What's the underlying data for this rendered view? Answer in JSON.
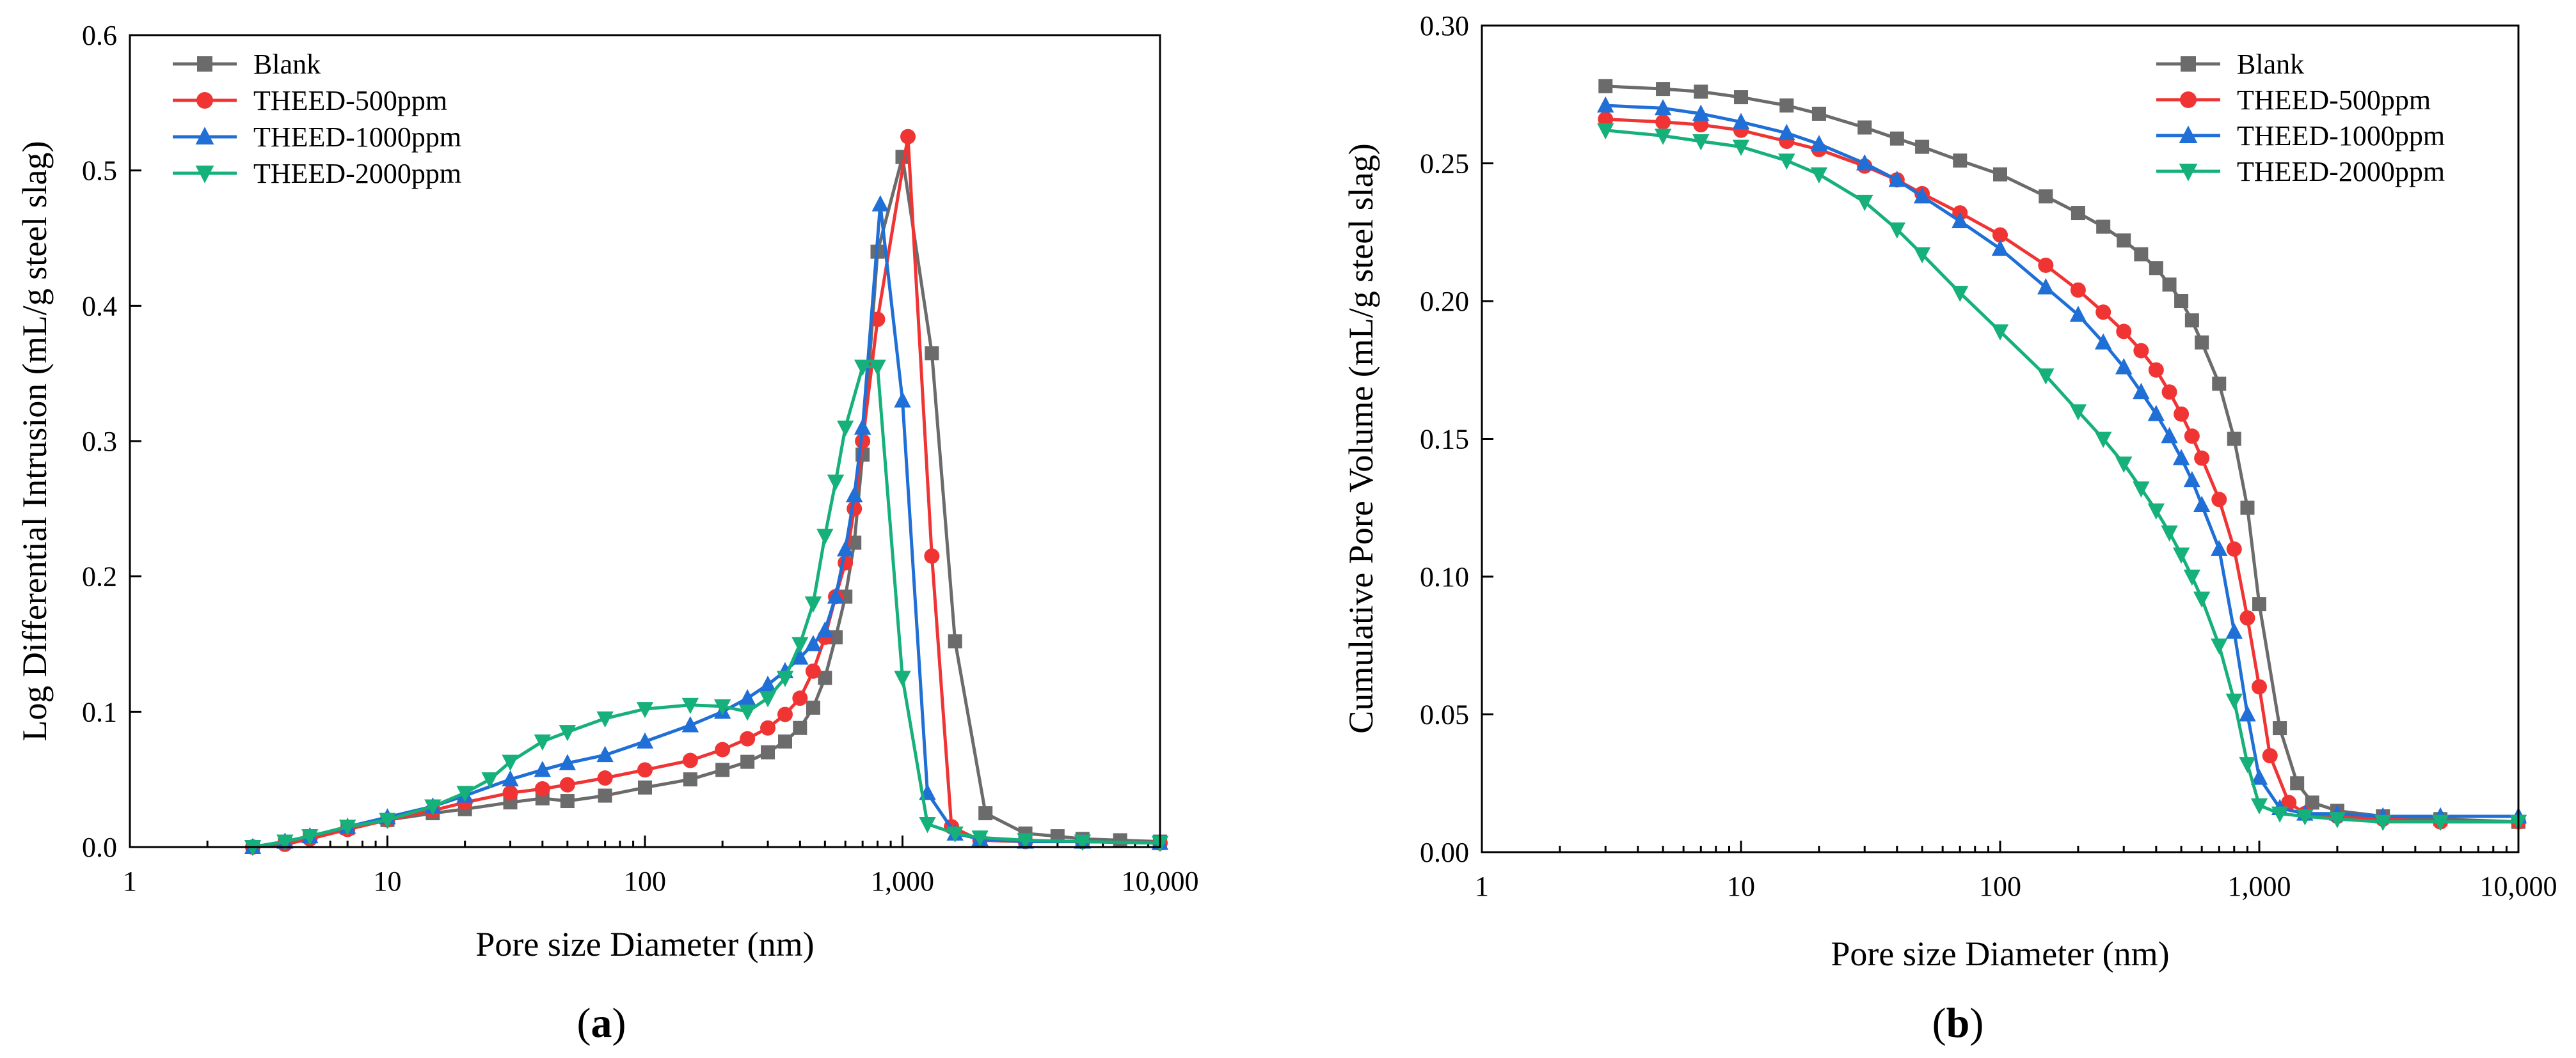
{
  "figure": {
    "panels": [
      {
        "label": "a",
        "xlabel": "Pore size Diameter (nm)",
        "ylabel": "Log Differential Intrusion (mL/g steel slag)"
      },
      {
        "label": "b",
        "xlabel": "Pore size Diameter (nm)",
        "ylabel": "Cumulative Pore Volume (mL/g steel slag)"
      }
    ]
  },
  "legend_entries": [
    "Blank",
    "THEED-500ppm",
    "THEED-1000ppm",
    "THEED-2000ppm"
  ],
  "series_style": [
    {
      "name": "Blank",
      "color": "#6b6b6b",
      "marker": "square"
    },
    {
      "name": "THEED-500ppm",
      "color": "#f03434",
      "marker": "circle"
    },
    {
      "name": "THEED-1000ppm",
      "color": "#1f6fd6",
      "marker": "triangle-up"
    },
    {
      "name": "THEED-2000ppm",
      "color": "#16b07a",
      "marker": "triangle-down"
    }
  ],
  "chart_data": [
    {
      "type": "line",
      "panel": "a",
      "title": "",
      "xlabel": "Pore size Diameter (nm)",
      "ylabel": "Log Differential Intrusion (mL/g steel slag)",
      "xscale": "log",
      "xlim": [
        1,
        10000
      ],
      "ylim": [
        0,
        0.6
      ],
      "xticks": [
        1,
        10,
        100,
        1000,
        10000
      ],
      "xtick_labels": [
        "1",
        "10",
        "100",
        "1,000",
        "10,000"
      ],
      "yticks": [
        0,
        0.1,
        0.2,
        0.3,
        0.4,
        0.5,
        0.6
      ],
      "ytick_labels": [
        "0.0",
        "0.1",
        "0.2",
        "0.3",
        "0.4",
        "0.5",
        "0.6"
      ],
      "legend_location": "top-left",
      "grid": false,
      "series": [
        {
          "name": "Blank",
          "x": [
            3,
            4,
            5,
            7,
            10,
            15,
            20,
            30,
            40,
            50,
            70,
            100,
            150,
            200,
            250,
            300,
            350,
            400,
            450,
            500,
            550,
            600,
            650,
            700,
            800,
            1000,
            1300,
            1600,
            2100,
            3000,
            4000,
            5000,
            7000,
            10000
          ],
          "y": [
            0.0,
            0.004,
            0.008,
            0.014,
            0.02,
            0.025,
            0.028,
            0.033,
            0.036,
            0.034,
            0.038,
            0.044,
            0.05,
            0.057,
            0.063,
            0.07,
            0.078,
            0.088,
            0.103,
            0.125,
            0.155,
            0.185,
            0.225,
            0.29,
            0.44,
            0.51,
            0.365,
            0.152,
            0.025,
            0.01,
            0.008,
            0.006,
            0.005,
            0.004
          ]
        },
        {
          "name": "THEED-500ppm",
          "x": [
            3,
            4,
            5,
            7,
            10,
            15,
            20,
            30,
            40,
            50,
            70,
            100,
            150,
            200,
            250,
            300,
            350,
            400,
            450,
            500,
            550,
            600,
            650,
            700,
            800,
            1050,
            1300,
            1550,
            2000,
            3000,
            5000,
            10000
          ],
          "y": [
            0.0,
            0.002,
            0.006,
            0.013,
            0.02,
            0.027,
            0.033,
            0.04,
            0.043,
            0.046,
            0.051,
            0.057,
            0.064,
            0.072,
            0.08,
            0.088,
            0.098,
            0.11,
            0.13,
            0.155,
            0.185,
            0.21,
            0.25,
            0.3,
            0.39,
            0.525,
            0.215,
            0.015,
            0.005,
            0.004,
            0.004,
            0.003
          ]
        },
        {
          "name": "THEED-1000ppm",
          "x": [
            3,
            4,
            5,
            7,
            10,
            15,
            20,
            30,
            40,
            50,
            70,
            100,
            150,
            200,
            250,
            300,
            350,
            400,
            450,
            500,
            550,
            600,
            650,
            700,
            820,
            1000,
            1250,
            1600,
            2000,
            3000,
            5000,
            10000
          ],
          "y": [
            0.0,
            0.004,
            0.008,
            0.015,
            0.022,
            0.03,
            0.038,
            0.05,
            0.057,
            0.062,
            0.068,
            0.078,
            0.09,
            0.1,
            0.11,
            0.12,
            0.13,
            0.14,
            0.15,
            0.16,
            0.185,
            0.22,
            0.26,
            0.31,
            0.475,
            0.33,
            0.04,
            0.01,
            0.006,
            0.004,
            0.004,
            0.003
          ]
        },
        {
          "name": "THEED-2000ppm",
          "x": [
            3,
            4,
            5,
            7,
            10,
            15,
            20,
            25,
            30,
            40,
            50,
            70,
            100,
            150,
            200,
            250,
            300,
            350,
            400,
            450,
            500,
            550,
            600,
            700,
            800,
            1000,
            1250,
            1600,
            2000,
            3000,
            5000,
            10000
          ],
          "y": [
            0.0,
            0.004,
            0.008,
            0.015,
            0.02,
            0.03,
            0.04,
            0.05,
            0.063,
            0.078,
            0.085,
            0.095,
            0.102,
            0.105,
            0.104,
            0.1,
            0.11,
            0.125,
            0.15,
            0.18,
            0.23,
            0.27,
            0.31,
            0.355,
            0.355,
            0.125,
            0.017,
            0.01,
            0.007,
            0.005,
            0.004,
            0.003
          ]
        }
      ]
    },
    {
      "type": "line",
      "panel": "b",
      "title": "",
      "xlabel": "Pore size Diameter (nm)",
      "ylabel": "Cumulative Pore Volume (mL/g steel slag)",
      "xscale": "log",
      "xlim": [
        1,
        10000
      ],
      "ylim": [
        0,
        0.3
      ],
      "xticks": [
        1,
        10,
        100,
        1000,
        10000
      ],
      "xtick_labels": [
        "1",
        "10",
        "100",
        "1,000",
        "10,000"
      ],
      "yticks": [
        0,
        0.05,
        0.1,
        0.15,
        0.2,
        0.25,
        0.3
      ],
      "ytick_labels": [
        "0.00",
        "0.05",
        "0.10",
        "0.15",
        "0.20",
        "0.25",
        "0.30"
      ],
      "legend_location": "top-right",
      "grid": false,
      "series": [
        {
          "name": "Blank",
          "x": [
            3,
            5,
            7,
            10,
            15,
            20,
            30,
            40,
            50,
            70,
            100,
            150,
            200,
            250,
            300,
            350,
            400,
            450,
            500,
            550,
            600,
            700,
            800,
            900,
            1000,
            1200,
            1400,
            1600,
            2000,
            3000,
            5000,
            10000
          ],
          "y": [
            0.278,
            0.277,
            0.276,
            0.274,
            0.271,
            0.268,
            0.263,
            0.259,
            0.256,
            0.251,
            0.246,
            0.238,
            0.232,
            0.227,
            0.222,
            0.217,
            0.212,
            0.206,
            0.2,
            0.193,
            0.185,
            0.17,
            0.15,
            0.125,
            0.09,
            0.045,
            0.025,
            0.018,
            0.015,
            0.013,
            0.012,
            0.011
          ]
        },
        {
          "name": "THEED-500ppm",
          "x": [
            3,
            5,
            7,
            10,
            15,
            20,
            30,
            40,
            50,
            70,
            100,
            150,
            200,
            250,
            300,
            350,
            400,
            450,
            500,
            550,
            600,
            700,
            800,
            900,
            1000,
            1100,
            1300,
            1500,
            2000,
            3000,
            5000,
            10000
          ],
          "y": [
            0.266,
            0.265,
            0.264,
            0.262,
            0.258,
            0.255,
            0.249,
            0.244,
            0.239,
            0.232,
            0.224,
            0.213,
            0.204,
            0.196,
            0.189,
            0.182,
            0.175,
            0.167,
            0.159,
            0.151,
            0.143,
            0.128,
            0.11,
            0.085,
            0.06,
            0.035,
            0.018,
            0.014,
            0.013,
            0.012,
            0.011,
            0.011
          ]
        },
        {
          "name": "THEED-1000ppm",
          "x": [
            3,
            5,
            7,
            10,
            15,
            20,
            30,
            40,
            50,
            70,
            100,
            150,
            200,
            250,
            300,
            350,
            400,
            450,
            500,
            550,
            600,
            700,
            800,
            900,
            1000,
            1200,
            1500,
            2000,
            3000,
            5000,
            10000
          ],
          "y": [
            0.271,
            0.27,
            0.268,
            0.265,
            0.261,
            0.257,
            0.25,
            0.244,
            0.238,
            0.229,
            0.219,
            0.205,
            0.195,
            0.185,
            0.176,
            0.167,
            0.159,
            0.151,
            0.143,
            0.135,
            0.126,
            0.11,
            0.08,
            0.05,
            0.027,
            0.016,
            0.014,
            0.014,
            0.013,
            0.013,
            0.013
          ]
        },
        {
          "name": "THEED-2000ppm",
          "x": [
            3,
            5,
            7,
            10,
            15,
            20,
            30,
            40,
            50,
            70,
            100,
            150,
            200,
            250,
            300,
            350,
            400,
            450,
            500,
            550,
            600,
            700,
            800,
            900,
            1000,
            1200,
            1500,
            2000,
            3000,
            5000,
            10000
          ],
          "y": [
            0.262,
            0.26,
            0.258,
            0.256,
            0.251,
            0.246,
            0.236,
            0.226,
            0.217,
            0.203,
            0.189,
            0.173,
            0.16,
            0.15,
            0.141,
            0.132,
            0.124,
            0.116,
            0.108,
            0.1,
            0.092,
            0.075,
            0.055,
            0.032,
            0.017,
            0.014,
            0.013,
            0.012,
            0.011,
            0.011,
            0.011
          ]
        }
      ]
    }
  ]
}
